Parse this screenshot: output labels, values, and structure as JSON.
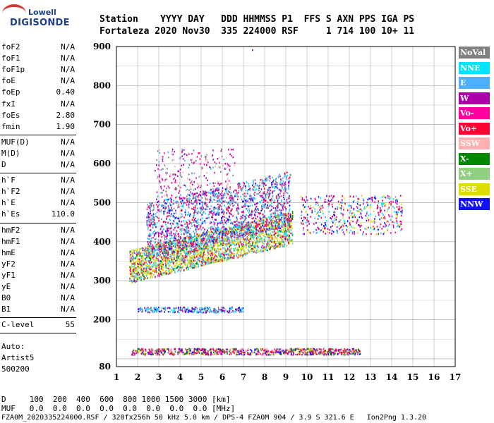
{
  "logo": {
    "line1": "Lowell",
    "line2": "DIGISONDE"
  },
  "header": {
    "row1": "Station    YYYY DAY   DDD HHMMSS P1  FFS S AXN PPS IGA PS",
    "row2": "Fortaleza 2020 Nov30  335 224000 RSF     1 714 100 10+ 11"
  },
  "params_group1": [
    {
      "name": "foF2",
      "value": "N/A"
    },
    {
      "name": "foF1",
      "value": "N/A"
    },
    {
      "name": "foF1p",
      "value": "N/A"
    },
    {
      "name": "foE",
      "value": "N/A"
    },
    {
      "name": "foEp",
      "value": "0.40"
    },
    {
      "name": "fxI",
      "value": "N/A"
    },
    {
      "name": "foEs",
      "value": "2.80"
    },
    {
      "name": "fmin",
      "value": "1.90"
    }
  ],
  "params_group2": [
    {
      "name": "MUF(D)",
      "value": "N/A"
    },
    {
      "name": "M(D)",
      "value": "N/A"
    },
    {
      "name": "D",
      "value": "N/A"
    }
  ],
  "params_group3": [
    {
      "name": "h`F",
      "value": "N/A"
    },
    {
      "name": "h`F2",
      "value": "N/A"
    },
    {
      "name": "h`E",
      "value": "N/A"
    },
    {
      "name": "h`Es",
      "value": "110.0"
    }
  ],
  "params_group4": [
    {
      "name": "hmF2",
      "value": "N/A"
    },
    {
      "name": "hmF1",
      "value": "N/A"
    },
    {
      "name": "hmE",
      "value": "N/A"
    },
    {
      "name": "yF2",
      "value": "N/A"
    },
    {
      "name": "yF1",
      "value": "N/A"
    },
    {
      "name": "yE",
      "value": "N/A"
    },
    {
      "name": "B0",
      "value": "N/A"
    },
    {
      "name": "B1",
      "value": "N/A"
    }
  ],
  "clevel": {
    "name": "C-level",
    "value": "55"
  },
  "autoscale": {
    "line1": "Auto:",
    "line2": "Artist5",
    "line3": "500200"
  },
  "legend": [
    {
      "label": "NoVal",
      "color": "#808080"
    },
    {
      "label": "NNE",
      "color": "#00e5ff"
    },
    {
      "label": "E",
      "color": "#4db0ff"
    },
    {
      "label": "W",
      "color": "#aa00aa"
    },
    {
      "label": "Vo-",
      "color": "#ff00a0"
    },
    {
      "label": "Vo+",
      "color": "#ff0033"
    },
    {
      "label": "SSW",
      "color": "#ffb0b0"
    },
    {
      "label": "X-",
      "color": "#008800"
    },
    {
      "label": "X+",
      "color": "#90d080"
    },
    {
      "label": "SSE",
      "color": "#dddd00"
    },
    {
      "label": "NNW",
      "color": "#1010ff"
    }
  ],
  "footer": {
    "d_row": "D     100  200  400  600  800 1000 1500 3000 [km]",
    "muf_row": "MUF   0.0  0.0  0.0  0.0  0.0  0.0  0.0  0.0 [MHz]",
    "file_row": "FZA0M_2020335224000.RSF / 320fx256h 50 kHz 5.0 km / DPS-4 FZA0M 904 / 3.9 S 321.6 E   Ion2Png 1.3.20"
  },
  "chart_data": {
    "type": "scatter",
    "xlabel": "",
    "ylabel": "",
    "xlim": [
      1,
      17
    ],
    "ylim": [
      80,
      900
    ],
    "xticks": [
      1,
      2,
      3,
      4,
      5,
      6,
      7,
      8,
      9,
      10,
      11,
      12,
      13,
      14,
      15,
      16,
      17
    ],
    "yticks": [
      80,
      200,
      300,
      400,
      500,
      600,
      700,
      800,
      900
    ],
    "grid": true,
    "clusters": [
      {
        "name": "Es-layer",
        "x": [
          1.7,
          12.5
        ],
        "y": [
          112,
          128
        ]
      },
      {
        "name": "E-trace",
        "x": [
          2.0,
          7.0
        ],
        "y": [
          220,
          235
        ]
      },
      {
        "name": "F-trace-lower",
        "x": [
          1.6,
          9.3
        ],
        "y": [
          290,
          400
        ]
      },
      {
        "name": "F-trace-upper",
        "x": [
          2.4,
          9.2
        ],
        "y": [
          380,
          520
        ]
      },
      {
        "name": "F-high",
        "x": [
          9.7,
          14.5
        ],
        "y": [
          420,
          520
        ]
      }
    ]
  }
}
